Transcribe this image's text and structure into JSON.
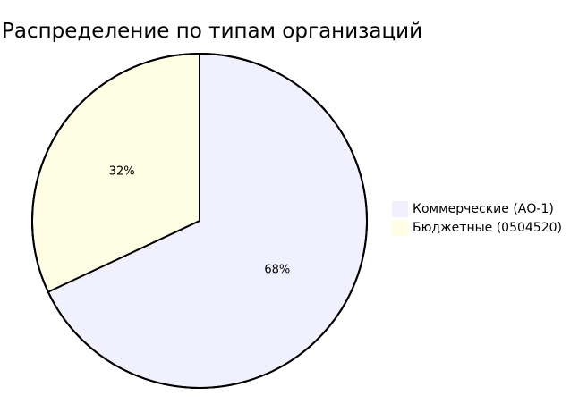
{
  "chart_data": {
    "type": "pie",
    "title": "Распределение по типам организаций",
    "slices": [
      {
        "label": "Коммерческие (АО-1)",
        "value": 68,
        "display": "68%",
        "color": "#f0f0fe"
      },
      {
        "label": "Бюджетные (0504520)",
        "value": 32,
        "display": "32%",
        "color": "#fefee4"
      }
    ],
    "start_direction": "top",
    "direction": "clockwise",
    "legend_position": "right"
  },
  "colors": {
    "outline": "#000000",
    "text": "#000000"
  }
}
